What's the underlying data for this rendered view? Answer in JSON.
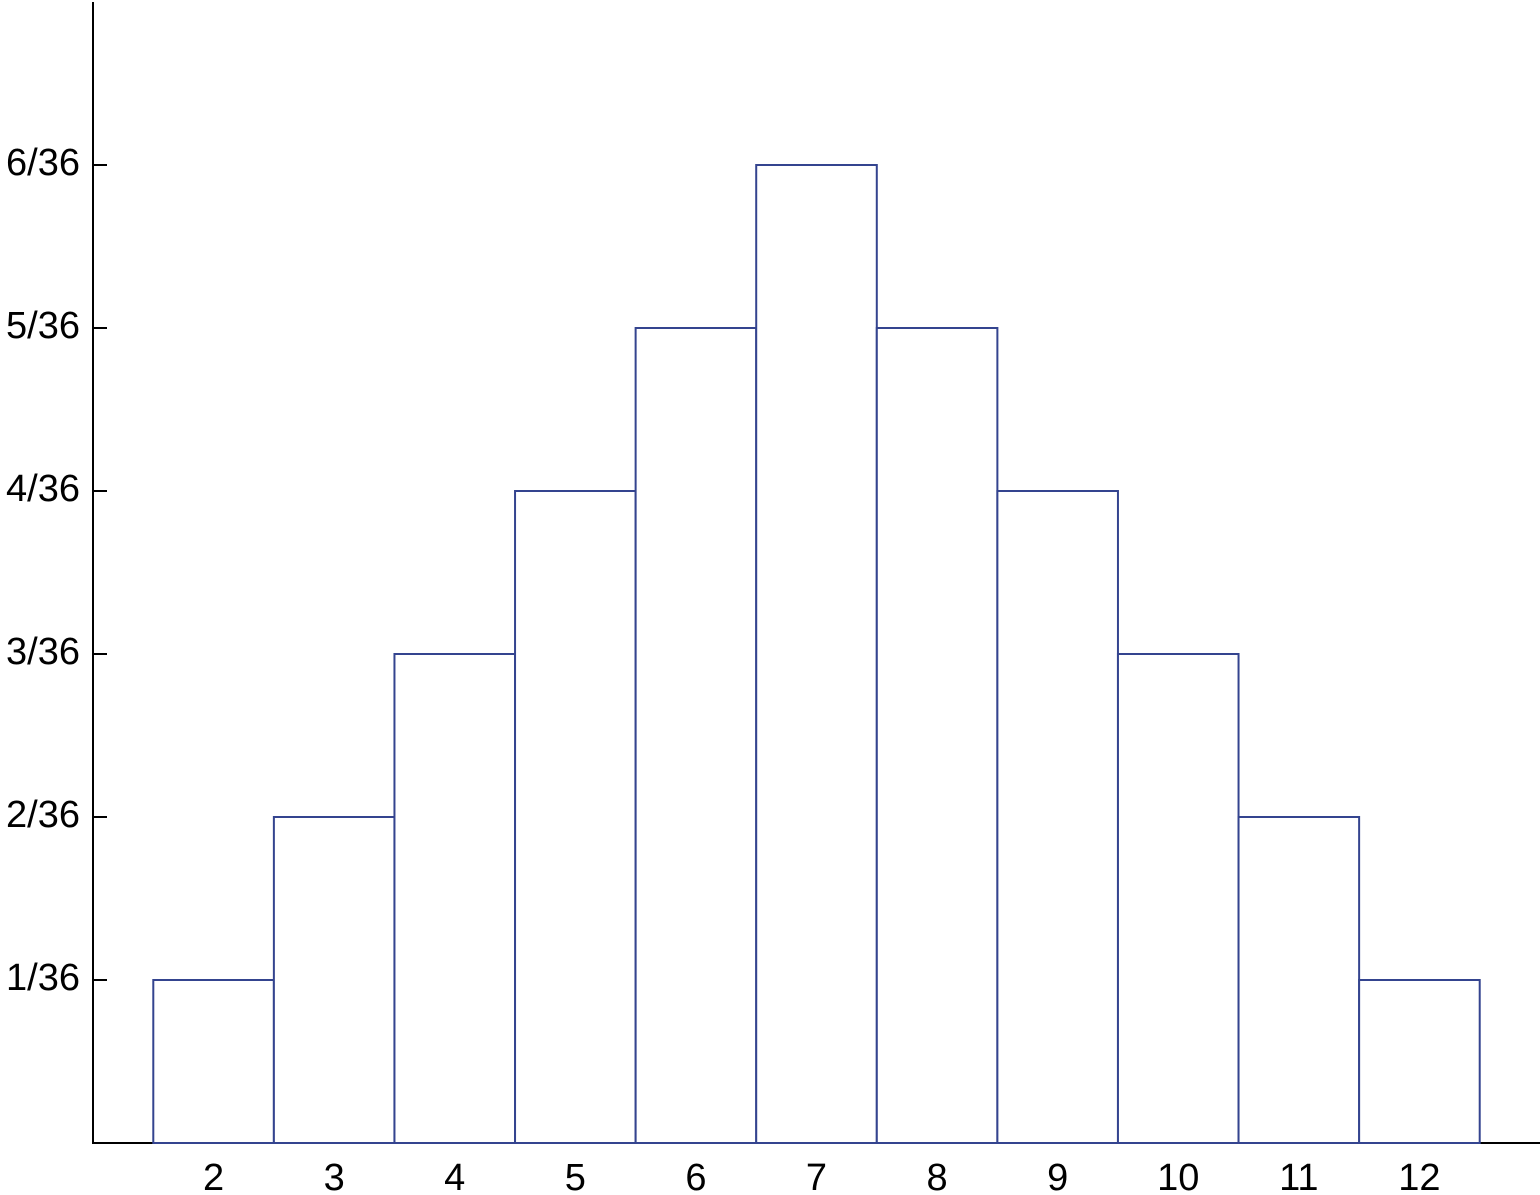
{
  "chart_data": {
    "type": "bar",
    "categories": [
      "2",
      "3",
      "4",
      "5",
      "6",
      "7",
      "8",
      "9",
      "10",
      "11",
      "12"
    ],
    "values": [
      0.027777777777777776,
      0.05555555555555555,
      0.08333333333333333,
      0.1111111111111111,
      0.1388888888888889,
      0.16666666666666666,
      0.1388888888888889,
      0.1111111111111111,
      0.08333333333333333,
      0.05555555555555555,
      0.027777777777777776
    ],
    "color": "#34448f",
    "ylim": [
      0,
      0.19444444444444445
    ],
    "yticks": [
      {
        "value": 0.027777777777777776,
        "label": "1/36"
      },
      {
        "value": 0.05555555555555555,
        "label": "2/36"
      },
      {
        "value": 0.08333333333333333,
        "label": "3/36"
      },
      {
        "value": 0.1111111111111111,
        "label": "4/36"
      },
      {
        "value": 0.1388888888888889,
        "label": "5/36"
      },
      {
        "value": 0.16666666666666666,
        "label": "6/36"
      }
    ],
    "grid": false
  }
}
